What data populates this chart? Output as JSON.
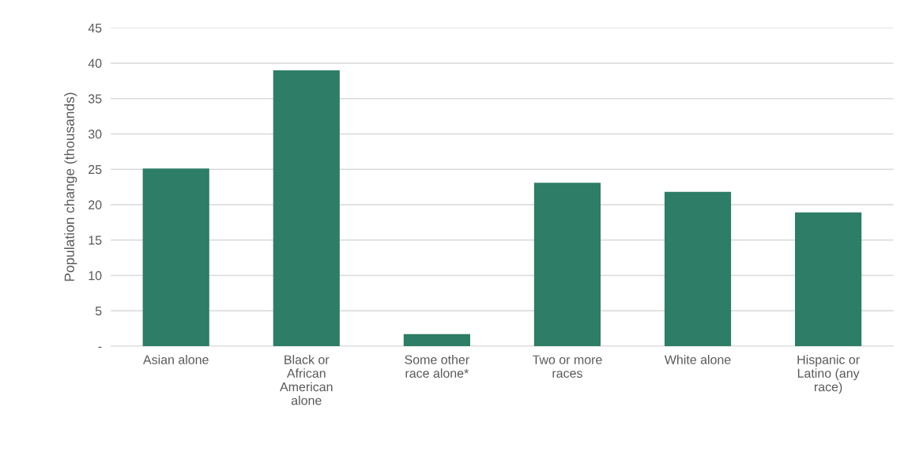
{
  "chart_data": {
    "type": "bar",
    "ylabel": "Population change (thousands)",
    "categories": [
      "Asian alone",
      "Black or African American alone",
      "Some other race alone*",
      "Two or more races",
      "White alone",
      "Hispanic or Latino (any race)"
    ],
    "values": [
      25.1,
      39.0,
      1.7,
      23.1,
      21.8,
      18.9
    ],
    "color": "#2e7d66",
    "ylim": [
      0,
      45
    ],
    "yticks": [
      {
        "value": 0,
        "label": "-"
      },
      5,
      10,
      15,
      20,
      25,
      30,
      35,
      40,
      45
    ],
    "grid": "y"
  }
}
